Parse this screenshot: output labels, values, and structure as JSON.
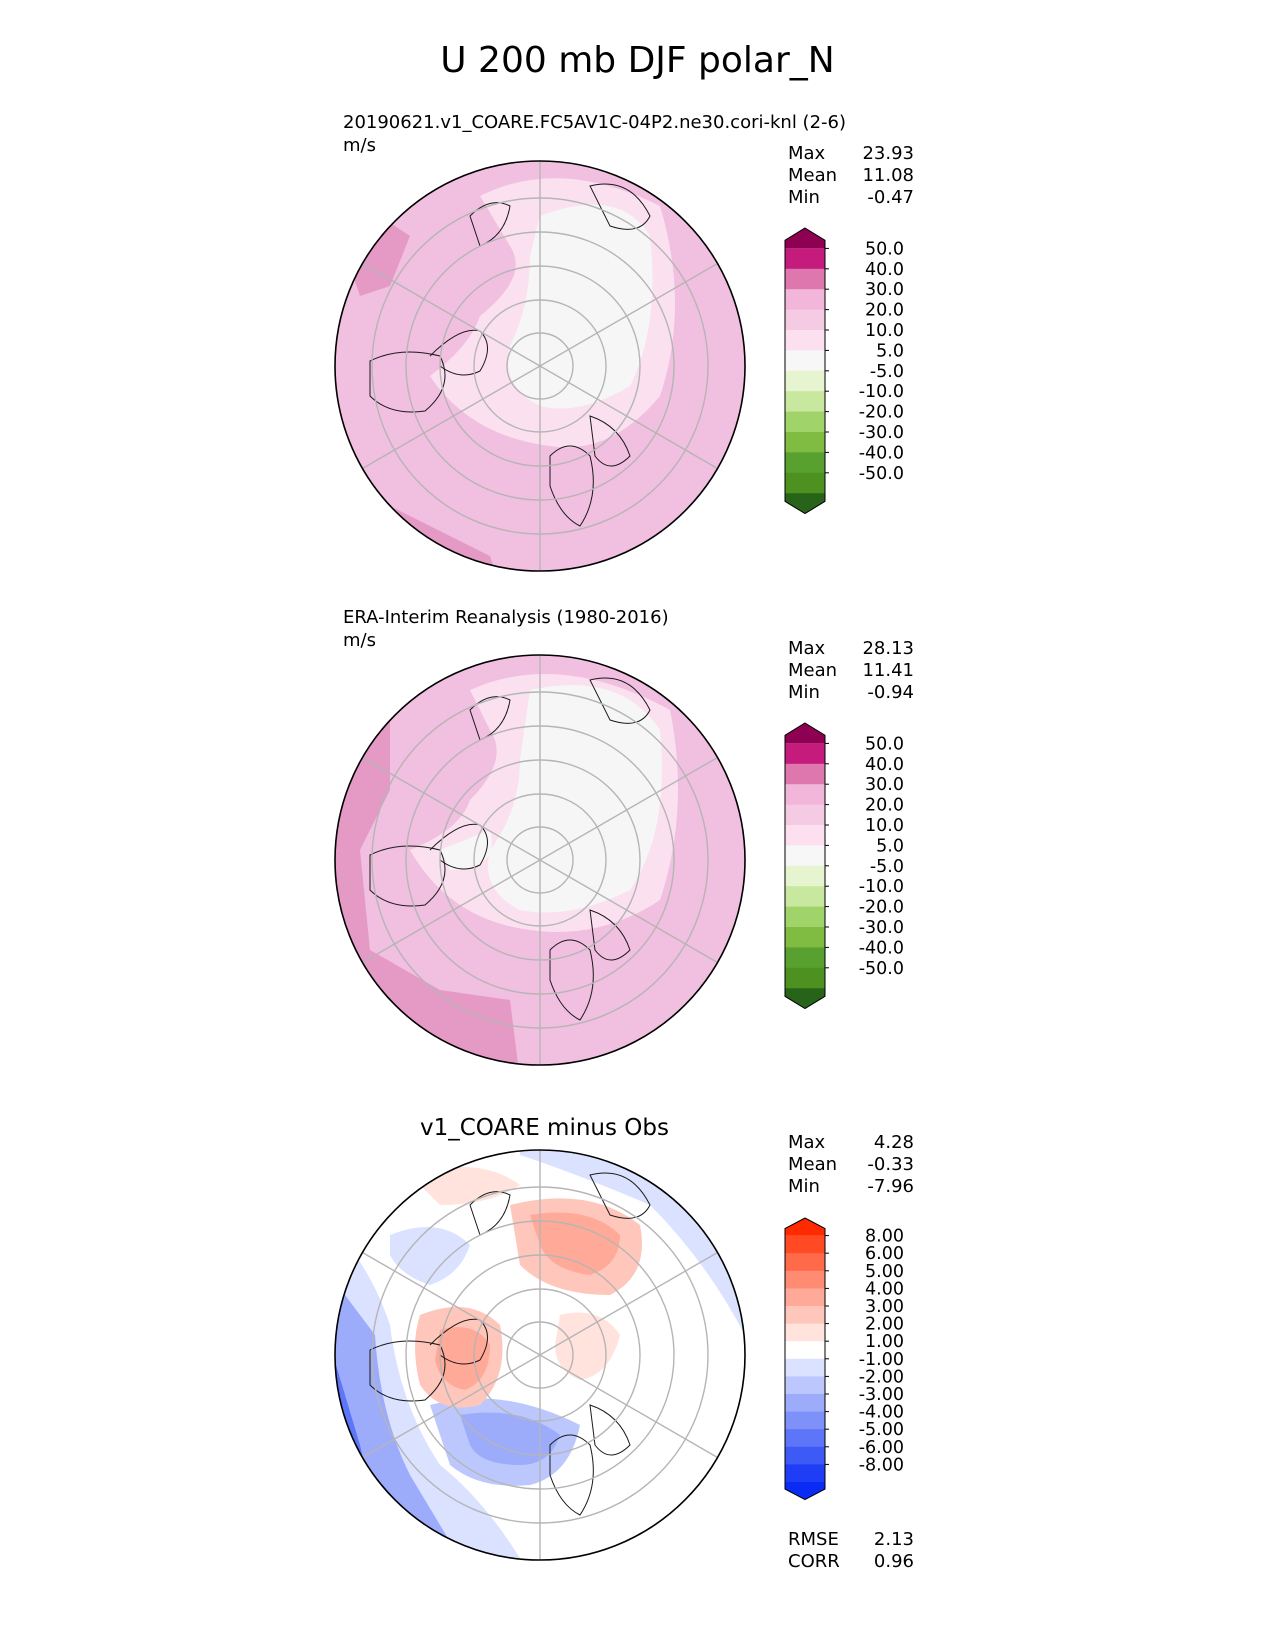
{
  "title": "U 200 mb DJF polar_N",
  "panels": [
    {
      "title": "20190621.v1_COARE.FC5AV1C-04P2.ne30.cori-knl (2-6)",
      "units": "m/s",
      "stats": [
        {
          "label": "Max",
          "value": "23.93"
        },
        {
          "label": "Mean",
          "value": "11.08"
        },
        {
          "label": "Min",
          "value": "-0.47"
        }
      ]
    },
    {
      "title": "ERA-Interim Reanalysis (1980-2016)",
      "units": "m/s",
      "stats": [
        {
          "label": "Max",
          "value": "28.13"
        },
        {
          "label": "Mean",
          "value": "11.41"
        },
        {
          "label": "Min",
          "value": "-0.94"
        }
      ]
    },
    {
      "title": "v1_COARE minus Obs",
      "units": "",
      "stats": [
        {
          "label": "Max",
          "value": "4.28"
        },
        {
          "label": "Mean",
          "value": "-0.33"
        },
        {
          "label": "Min",
          "value": "-7.96"
        }
      ],
      "metrics": [
        {
          "label": "RMSE",
          "value": "2.13"
        },
        {
          "label": "CORR",
          "value": "0.96"
        }
      ]
    }
  ],
  "chart_data": [
    {
      "type": "heatmap",
      "projection": "north polar stereographic",
      "title": "20190621.v1_COARE.FC5AV1C-04P2.ne30.cori-knl (2-6)",
      "units": "m/s",
      "colorbar": {
        "ticks": [
          "50.0",
          "40.0",
          "30.0",
          "20.0",
          "10.0",
          "5.0",
          "-5.0",
          "-10.0",
          "-20.0",
          "-30.0",
          "-40.0",
          "-50.0"
        ],
        "colors": [
          "#8e0152",
          "#c51b7d",
          "#de77ae",
          "#f1b6da",
          "#f5cbe3",
          "#fde0ef",
          "#f7f7f7",
          "#e6f5d0",
          "#c8e8a0",
          "#a0d46a",
          "#7fbc41",
          "#58a030",
          "#4d9221",
          "#276419"
        ],
        "extend": "both"
      },
      "stats": {
        "max": 23.93,
        "mean": 11.08,
        "min": -0.47
      }
    },
    {
      "type": "heatmap",
      "projection": "north polar stereographic",
      "title": "ERA-Interim Reanalysis (1980-2016)",
      "units": "m/s",
      "colorbar": {
        "ticks": [
          "50.0",
          "40.0",
          "30.0",
          "20.0",
          "10.0",
          "5.0",
          "-5.0",
          "-10.0",
          "-20.0",
          "-30.0",
          "-40.0",
          "-50.0"
        ],
        "colors": [
          "#8e0152",
          "#c51b7d",
          "#de77ae",
          "#f1b6da",
          "#f5cbe3",
          "#fde0ef",
          "#f7f7f7",
          "#e6f5d0",
          "#c8e8a0",
          "#a0d46a",
          "#7fbc41",
          "#58a030",
          "#4d9221",
          "#276419"
        ],
        "extend": "both"
      },
      "stats": {
        "max": 28.13,
        "mean": 11.41,
        "min": -0.94
      }
    },
    {
      "type": "heatmap",
      "projection": "north polar stereographic",
      "title": "v1_COARE minus Obs",
      "colorbar": {
        "ticks": [
          "8.00",
          "6.00",
          "5.00",
          "4.00",
          "3.00",
          "2.00",
          "1.00",
          "-1.00",
          "-2.00",
          "-3.00",
          "-4.00",
          "-5.00",
          "-6.00",
          "-8.00"
        ],
        "colors": [
          "#ff2a00",
          "#ff4a24",
          "#ff6a4a",
          "#ff8c72",
          "#ffa998",
          "#ffc7bb",
          "#ffe3dc",
          "#ffffff",
          "#dbe2ff",
          "#bcc8fd",
          "#9cacfb",
          "#7d91f9",
          "#5d75f8",
          "#3d59f6",
          "#1e3df5",
          "#0a2bf4"
        ],
        "extend": "both"
      },
      "stats": {
        "max": 4.28,
        "mean": -0.33,
        "min": -7.96
      },
      "rmse": 2.13,
      "corr": 0.96
    }
  ]
}
